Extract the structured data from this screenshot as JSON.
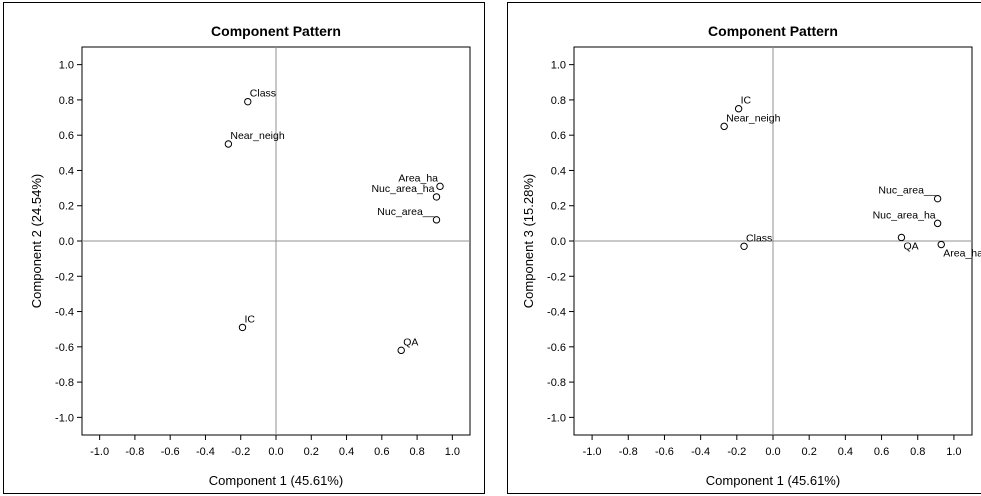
{
  "chart_data": [
    {
      "type": "scatter",
      "title": "Component Pattern",
      "xlabel": "Component 1 (45.61%)",
      "ylabel": "Component 2 (24.54%)",
      "xlim": [
        -1.1,
        1.1
      ],
      "ylim": [
        -1.1,
        1.1
      ],
      "xticks": [
        -1.0,
        -0.8,
        -0.6,
        -0.4,
        -0.2,
        0.0,
        0.2,
        0.4,
        0.6,
        0.8,
        1.0
      ],
      "yticks": [
        -1.0,
        -0.8,
        -0.6,
        -0.4,
        -0.2,
        0.0,
        0.2,
        0.4,
        0.6,
        0.8,
        1.0
      ],
      "tick_format": "0.0",
      "reference_lines": {
        "x": 0,
        "y": 0
      },
      "points": [
        {
          "label": "Class",
          "x": -0.16,
          "y": 0.79,
          "label_pos": "right"
        },
        {
          "label": "Near_neigh",
          "x": -0.27,
          "y": 0.55,
          "label_pos": "right"
        },
        {
          "label": "Area_ha",
          "x": 0.93,
          "y": 0.31,
          "label_pos": "left"
        },
        {
          "label": "Nuc_area_ha",
          "x": 0.91,
          "y": 0.25,
          "label_pos": "left"
        },
        {
          "label": "Nuc_area__",
          "x": 0.91,
          "y": 0.12,
          "label_pos": "left"
        },
        {
          "label": "IC",
          "x": -0.19,
          "y": -0.49,
          "label_pos": "right"
        },
        {
          "label": "QA",
          "x": 0.71,
          "y": -0.62,
          "label_pos": "right"
        }
      ]
    },
    {
      "type": "scatter",
      "title": "Component Pattern",
      "xlabel": "Component 1 (45.61%)",
      "ylabel": "Component 3 (15.28%)",
      "xlim": [
        -1.1,
        1.1
      ],
      "ylim": [
        -1.1,
        1.1
      ],
      "xticks": [
        -1.0,
        -0.8,
        -0.6,
        -0.4,
        -0.2,
        0.0,
        0.2,
        0.4,
        0.6,
        0.8,
        1.0
      ],
      "yticks": [
        -1.0,
        -0.8,
        -0.6,
        -0.4,
        -0.2,
        0.0,
        0.2,
        0.4,
        0.6,
        0.8,
        1.0
      ],
      "tick_format": "0.0",
      "reference_lines": {
        "x": 0,
        "y": 0
      },
      "points": [
        {
          "label": "IC",
          "x": -0.19,
          "y": 0.75,
          "label_pos": "right"
        },
        {
          "label": "Near_neigh",
          "x": -0.27,
          "y": 0.65,
          "label_pos": "right"
        },
        {
          "label": "Nuc_area__",
          "x": 0.91,
          "y": 0.24,
          "label_pos": "left"
        },
        {
          "label": "Nuc_area_ha",
          "x": 0.91,
          "y": 0.1,
          "label_pos": "left"
        },
        {
          "label": "QA",
          "x": 0.71,
          "y": 0.02,
          "label_pos": "below"
        },
        {
          "label": "Area_ha",
          "x": 0.93,
          "y": -0.02,
          "label_pos": "below"
        },
        {
          "label": "Class",
          "x": -0.16,
          "y": -0.03,
          "label_pos": "right"
        }
      ]
    }
  ]
}
